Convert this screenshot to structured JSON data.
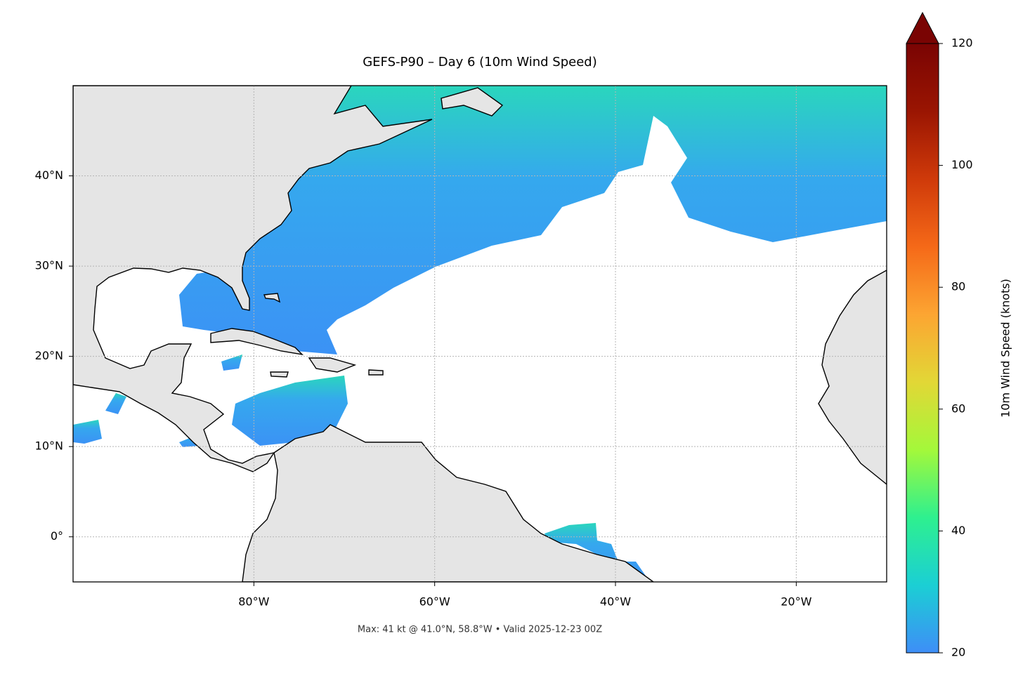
{
  "chart_data": {
    "type": "map",
    "title": "GEFS-P90 – Day 6 (10m Wind Speed)",
    "footnote": "Max: 41 kt @ 41.0°N, 58.8°W • Valid 2025-12-23 00Z",
    "xlim": [
      -100,
      -10
    ],
    "ylim": [
      -5,
      50
    ],
    "xticks": [
      {
        "value": -80,
        "label": "80°W"
      },
      {
        "value": -60,
        "label": "60°W"
      },
      {
        "value": -40,
        "label": "40°W"
      },
      {
        "value": -20,
        "label": "20°W"
      }
    ],
    "yticks": [
      {
        "value": 0,
        "label": "0°"
      },
      {
        "value": 10,
        "label": "10°N"
      },
      {
        "value": 20,
        "label": "20°N"
      },
      {
        "value": 30,
        "label": "30°N"
      },
      {
        "value": 40,
        "label": "40°N"
      }
    ],
    "grid": true,
    "colorbar": {
      "label": "10m Wind Speed (knots)",
      "lim": [
        20,
        120
      ],
      "ticks": [
        20,
        40,
        60,
        80,
        100,
        120
      ],
      "colors": [
        "#3e8ef7",
        "#1bcfd4",
        "#2ef08f",
        "#a4f83a",
        "#e2d736",
        "#fca532",
        "#f56918",
        "#cf3a0a",
        "#9a1502",
        "#7a0403"
      ]
    }
  }
}
